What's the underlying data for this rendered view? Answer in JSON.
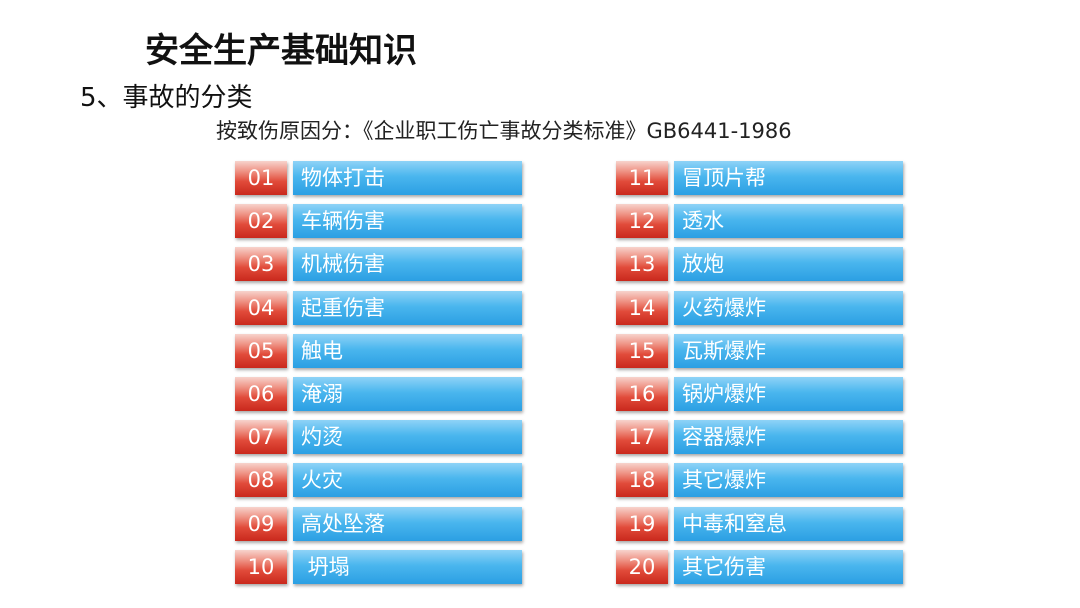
{
  "title": "安全生产基础知识",
  "subtitle": "5、事故的分类",
  "source": "按致伤原因分：《企业职工伤亡事故分类标准》GB6441-1986",
  "colors": {
    "number_box": "#e14b3a",
    "label_box": "#3aaae9"
  },
  "left_items": [
    {
      "num": "01",
      "label": "物体打击"
    },
    {
      "num": "02",
      "label": "车辆伤害"
    },
    {
      "num": "03",
      "label": "机械伤害"
    },
    {
      "num": "04",
      "label": "起重伤害"
    },
    {
      "num": "05",
      "label": "触电"
    },
    {
      "num": "06",
      "label": "淹溺"
    },
    {
      "num": "07",
      "label": "灼烫"
    },
    {
      "num": "08",
      "label": "火灾"
    },
    {
      "num": "09",
      "label": "高处坠落"
    },
    {
      "num": "10",
      "label": " 坍塌"
    }
  ],
  "right_items": [
    {
      "num": "11",
      "label": "冒顶片帮"
    },
    {
      "num": "12",
      "label": "透水"
    },
    {
      "num": "13",
      "label": "放炮"
    },
    {
      "num": "14",
      "label": "火药爆炸"
    },
    {
      "num": "15",
      "label": "瓦斯爆炸"
    },
    {
      "num": "16",
      "label": "锅炉爆炸"
    },
    {
      "num": "17",
      "label": "容器爆炸"
    },
    {
      "num": "18",
      "label": "其它爆炸"
    },
    {
      "num": "19",
      "label": "中毒和窒息"
    },
    {
      "num": "20",
      "label": "其它伤害"
    }
  ]
}
